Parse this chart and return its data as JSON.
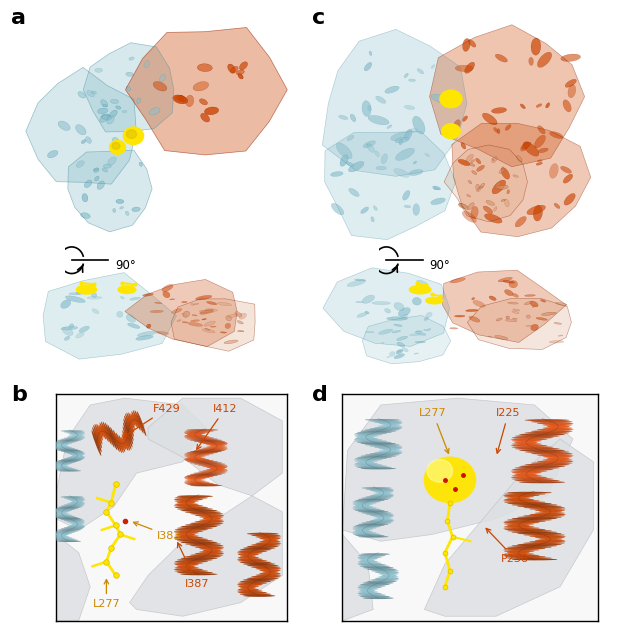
{
  "figure_width": 6.17,
  "figure_height": 6.4,
  "dpi": 100,
  "background_color": "#ffffff",
  "colors": {
    "teal": "#8BBFCC",
    "teal_dark": "#5A9AAA",
    "orange_red": "#CC4400",
    "orange_red2": "#E05010",
    "salmon": "#D4916A",
    "yellow": "#FFE600",
    "yellow_dark": "#DDBB00",
    "light_gray": "#e8e8e8",
    "surface_gray": "#dde0e3",
    "surface_edge": "#c0c4c8",
    "white": "#ffffff",
    "ann_orange": "#CC4400",
    "ann_yellow": "#CC8800"
  },
  "panel_labels": [
    {
      "text": "a",
      "fx": 0.018,
      "fy": 0.988
    },
    {
      "text": "b",
      "fx": 0.018,
      "fy": 0.398
    },
    {
      "text": "c",
      "fx": 0.505,
      "fy": 0.988
    },
    {
      "text": "d",
      "fx": 0.505,
      "fy": 0.398
    }
  ],
  "rotation_arrows": [
    {
      "fx": 0.175,
      "fy": 0.595
    },
    {
      "fx": 0.685,
      "fy": 0.595
    }
  ]
}
